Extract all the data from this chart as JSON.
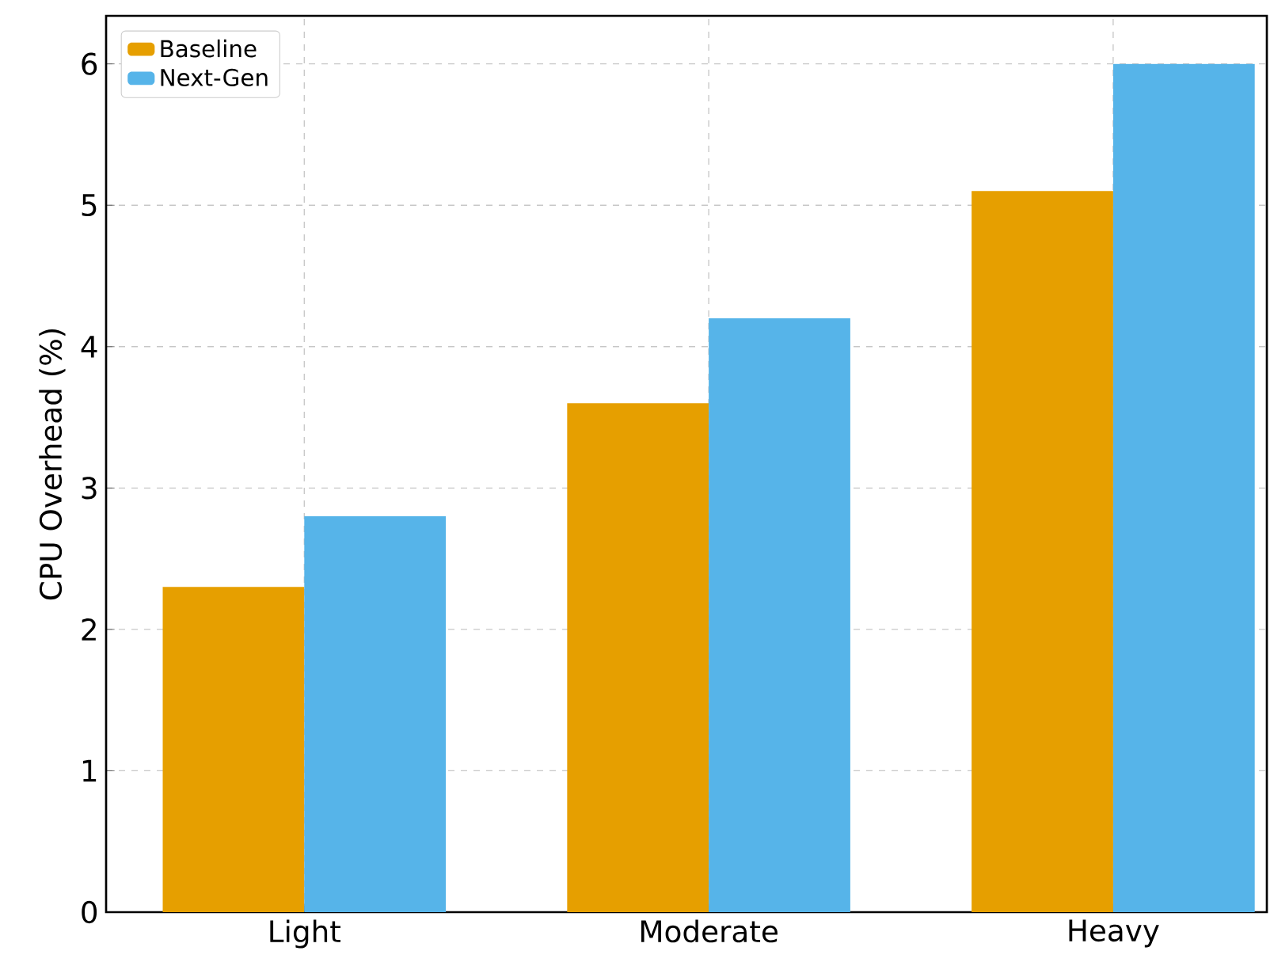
{
  "chart_data": {
    "type": "bar",
    "ylabel": "CPU Overhead (%)",
    "categories": [
      "Light",
      "Moderate",
      "Heavy"
    ],
    "series": [
      {
        "name": "Baseline",
        "color": "#e69f00",
        "values": [
          2.3,
          3.6,
          5.1
        ]
      },
      {
        "name": "Next-Gen",
        "color": "#56b4e9",
        "values": [
          2.8,
          4.2,
          6.0
        ]
      }
    ],
    "ylim": [
      0,
      6.34
    ],
    "yticks": [
      0,
      1,
      2,
      3,
      4,
      5,
      6
    ],
    "grid": true,
    "legend": "top left"
  }
}
